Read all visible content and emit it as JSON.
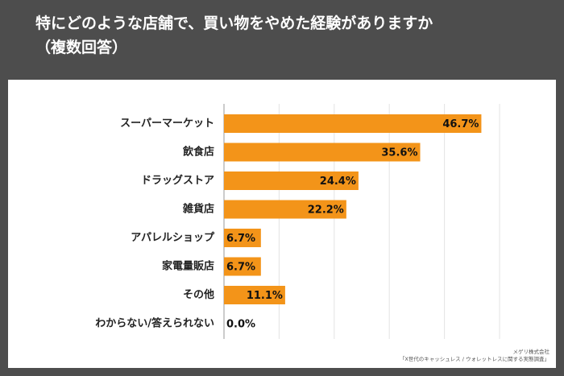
{
  "title": {
    "line1": "特にどのような店舗で、買い物をやめた経験がありますか",
    "line2": "（複数回答）"
  },
  "credit": {
    "company": "メゲリ株式会社",
    "survey": "「X世代のキャッシュレス / ウォレットレスに関する実態調査」"
  },
  "colors": {
    "bar": "#f39419",
    "background": "#4d4d4d",
    "panel": "#ffffff"
  },
  "chart_data": {
    "type": "bar",
    "orientation": "horizontal",
    "categories": [
      "スーパーマーケット",
      "飲食店",
      "ドラッグストア",
      "雑貨店",
      "アパレルショップ",
      "家電量販店",
      "その他",
      "わからない/答えられない"
    ],
    "values": [
      46.7,
      35.6,
      24.4,
      22.2,
      6.7,
      6.7,
      11.1,
      0.0
    ],
    "labels": [
      "46.7%",
      "35.6%",
      "24.4%",
      "22.2%",
      "6.7%",
      "6.7%",
      "11.1%",
      "0.0%"
    ],
    "xlim": [
      0,
      50
    ],
    "grid": true
  }
}
